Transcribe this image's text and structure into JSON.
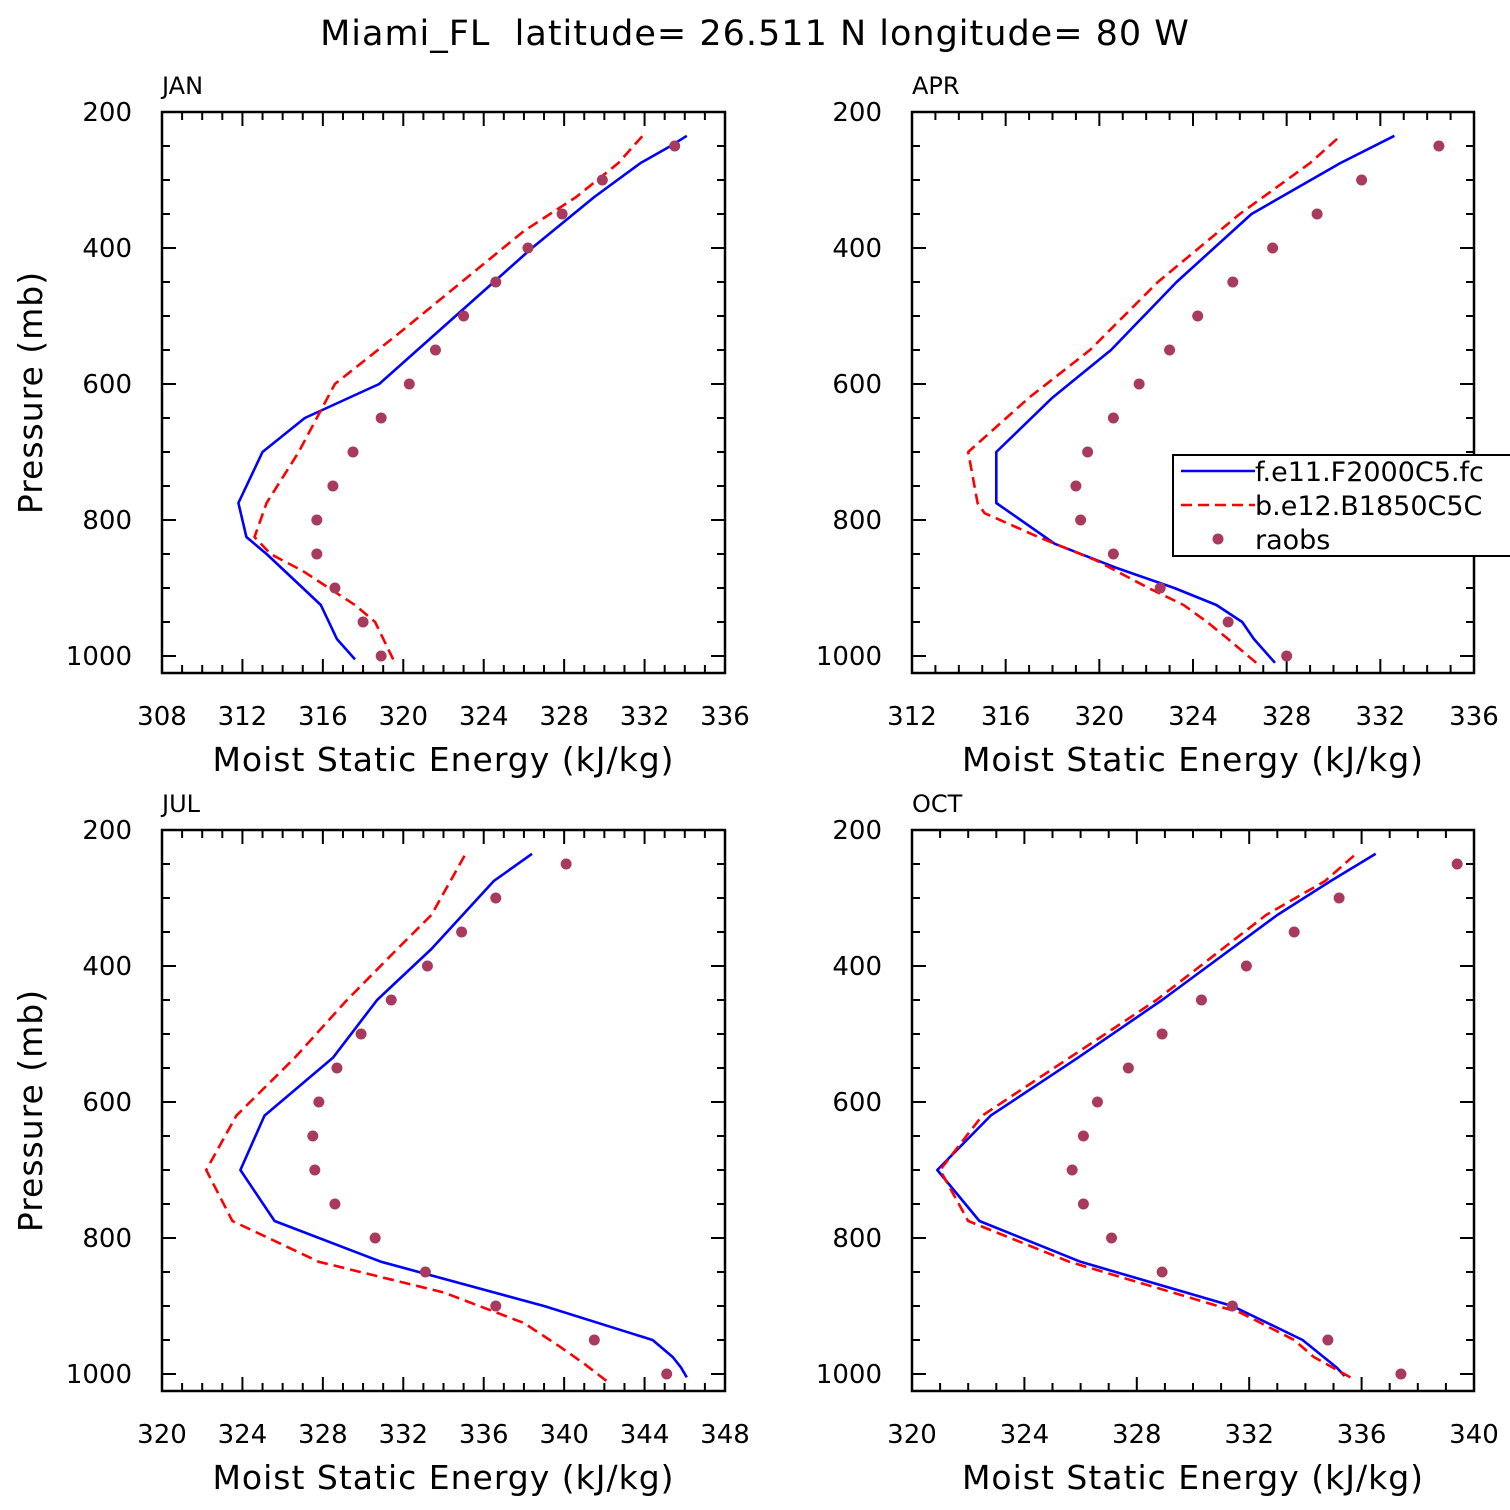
{
  "title": "Miami_FL  latitude= 26.511 N longitude= 80 W",
  "colors": {
    "f_e11": "#0000ff",
    "b_e12": "#ff0000",
    "raobs": "#a83a5e"
  },
  "legend": {
    "panel": "APR",
    "placement": "right",
    "entries": [
      "f.e11.F2000C5.fc",
      "b.e12.B1850C5C",
      "raobs"
    ]
  },
  "chart_data": [
    {
      "type": "line",
      "title": "JAN",
      "xlabel": "Moist Static Energy (kJ/kg)",
      "ylabel": "Pressure (mb)",
      "xlim": [
        308,
        336
      ],
      "ylim": [
        1000,
        200
      ],
      "xticks": [
        308,
        312,
        316,
        320,
        324,
        328,
        332,
        336
      ],
      "yticks": [
        200,
        400,
        600,
        800,
        1000
      ],
      "series": [
        {
          "name": "f.e11.F2000C5.fc",
          "style": "solid",
          "color": "#0000ff",
          "x": [
            317.6,
            316.7,
            316.3,
            315.9,
            315.0,
            314.1,
            313.2,
            312.2,
            311.8,
            313.0,
            315.1,
            318.8,
            322.6,
            326.4,
            329.5,
            331.8,
            333.3,
            334.1
          ],
          "y": [
            1005,
            975,
            950,
            925,
            900,
            875,
            850,
            825,
            775,
            700,
            650,
            600,
            500,
            400,
            325,
            275,
            250,
            235
          ]
        },
        {
          "name": "b.e12.B1850C5C",
          "style": "dashed",
          "color": "#ff0000",
          "x": [
            319.5,
            318.6,
            317.6,
            316.3,
            315.0,
            313.4,
            312.6,
            313.2,
            314.8,
            316.6,
            319.8,
            322.9,
            326.0,
            328.6,
            330.7,
            331.9
          ],
          "y": [
            1005,
            950,
            925,
            900,
            875,
            850,
            825,
            775,
            700,
            600,
            525,
            450,
            375,
            325,
            275,
            235
          ]
        },
        {
          "name": "raobs",
          "style": "markers",
          "color": "#a83a5e",
          "x": [
            318.9,
            318.0,
            316.6,
            315.7,
            315.7,
            316.5,
            317.5,
            318.9,
            320.3,
            321.6,
            323.0,
            324.6,
            326.2,
            327.9,
            329.9,
            333.5
          ],
          "y": [
            1000,
            950,
            900,
            850,
            800,
            750,
            700,
            650,
            600,
            550,
            500,
            450,
            400,
            350,
            300,
            250
          ]
        }
      ]
    },
    {
      "type": "line",
      "title": "APR",
      "xlabel": "Moist Static Energy (kJ/kg)",
      "ylabel": "",
      "xlim": [
        312,
        336
      ],
      "ylim": [
        1000,
        200
      ],
      "xticks": [
        312,
        316,
        320,
        324,
        328,
        332,
        336
      ],
      "yticks": [
        200,
        400,
        600,
        800,
        1000
      ],
      "series": [
        {
          "name": "f.e11.F2000C5.fc",
          "style": "solid",
          "color": "#0000ff",
          "x": [
            327.5,
            326.6,
            326.1,
            325.0,
            323.2,
            320.7,
            318.1,
            315.6,
            315.6,
            318.0,
            320.5,
            323.3,
            326.5,
            330.3,
            332.6
          ],
          "y": [
            1010,
            975,
            950,
            925,
            900,
            870,
            835,
            775,
            700,
            620,
            550,
            450,
            350,
            275,
            235
          ]
        },
        {
          "name": "b.e12.B1850C5C",
          "style": "dashed",
          "color": "#ff0000",
          "x": [
            326.7,
            325.5,
            324.6,
            323.6,
            322.1,
            319.9,
            317.4,
            315.1,
            314.8,
            314.4,
            317.0,
            319.6,
            322.5,
            326.0,
            329.0,
            330.3
          ],
          "y": [
            1010,
            975,
            950,
            925,
            900,
            860,
            825,
            790,
            775,
            700,
            620,
            550,
            450,
            350,
            275,
            235
          ]
        },
        {
          "name": "raobs",
          "style": "markers",
          "color": "#a83a5e",
          "x": [
            328.0,
            325.5,
            322.6,
            320.6,
            319.2,
            319.0,
            319.5,
            320.6,
            321.7,
            323.0,
            324.2,
            325.7,
            327.4,
            329.3,
            331.2,
            334.5
          ],
          "y": [
            1000,
            950,
            900,
            850,
            800,
            750,
            700,
            650,
            600,
            550,
            500,
            450,
            400,
            350,
            300,
            250
          ]
        }
      ]
    },
    {
      "type": "line",
      "title": "JUL",
      "xlabel": "Moist Static Energy (kJ/kg)",
      "ylabel": "Pressure (mb)",
      "xlim": [
        320,
        348
      ],
      "ylim": [
        1000,
        200
      ],
      "xticks": [
        320,
        324,
        328,
        332,
        336,
        340,
        344,
        348
      ],
      "yticks": [
        200,
        400,
        600,
        800,
        1000
      ],
      "series": [
        {
          "name": "f.e11.F2000C5.fc",
          "style": "solid",
          "color": "#0000ff",
          "x": [
            346.1,
            345.8,
            345.4,
            344.4,
            339.0,
            330.9,
            325.6,
            323.9,
            325.1,
            328.5,
            330.7,
            333.4,
            336.5,
            338.4
          ],
          "y": [
            1005,
            990,
            975,
            950,
            900,
            835,
            775,
            700,
            620,
            535,
            450,
            375,
            275,
            235
          ]
        },
        {
          "name": "b.e12.B1850C5C",
          "style": "dashed",
          "color": "#ff0000",
          "x": [
            342.1,
            341.0,
            339.8,
            338.0,
            334.0,
            327.8,
            323.5,
            322.2,
            323.7,
            326.6,
            329.2,
            331.7,
            333.4,
            335.1
          ],
          "y": [
            1010,
            985,
            960,
            925,
            880,
            835,
            775,
            700,
            620,
            535,
            450,
            375,
            325,
            235
          ]
        },
        {
          "name": "raobs",
          "style": "markers",
          "color": "#a83a5e",
          "x": [
            345.1,
            341.5,
            336.6,
            333.1,
            330.6,
            328.6,
            327.6,
            327.5,
            327.8,
            328.7,
            329.9,
            331.4,
            333.2,
            334.9,
            336.6,
            340.1
          ],
          "y": [
            1000,
            950,
            900,
            850,
            800,
            750,
            700,
            650,
            600,
            550,
            500,
            450,
            400,
            350,
            300,
            250
          ]
        }
      ]
    },
    {
      "type": "line",
      "title": "OCT",
      "xlabel": "Moist Static Energy (kJ/kg)",
      "ylabel": "",
      "xlim": [
        320,
        340
      ],
      "ylim": [
        1000,
        200
      ],
      "xticks": [
        320,
        324,
        328,
        332,
        336,
        340
      ],
      "yticks": [
        200,
        400,
        600,
        800,
        1000
      ],
      "series": [
        {
          "name": "f.e11.F2000C5.fc",
          "style": "solid",
          "color": "#0000ff",
          "x": [
            335.4,
            335.1,
            333.9,
            331.4,
            326.0,
            322.4,
            320.9,
            322.8,
            325.9,
            328.9,
            333.0,
            334.9,
            336.5
          ],
          "y": [
            1003,
            990,
            950,
            900,
            835,
            775,
            700,
            620,
            535,
            450,
            325,
            275,
            235
          ]
        },
        {
          "name": "b.e12.B1850C5C",
          "style": "dashed",
          "color": "#ff0000",
          "x": [
            335.6,
            334.3,
            333.6,
            331.7,
            325.6,
            322.0,
            321.0,
            322.5,
            325.6,
            328.7,
            332.6,
            334.7,
            335.8
          ],
          "y": [
            1005,
            975,
            950,
            910,
            835,
            775,
            700,
            620,
            535,
            450,
            325,
            275,
            235
          ]
        },
        {
          "name": "raobs",
          "style": "markers",
          "color": "#a83a5e",
          "x": [
            337.4,
            334.8,
            331.4,
            328.9,
            327.1,
            326.1,
            325.7,
            326.1,
            326.6,
            327.7,
            328.9,
            330.3,
            331.9,
            333.6,
            335.2,
            339.4
          ],
          "y": [
            1000,
            950,
            900,
            850,
            800,
            750,
            700,
            650,
            600,
            550,
            500,
            450,
            400,
            350,
            300,
            250
          ]
        }
      ]
    }
  ]
}
